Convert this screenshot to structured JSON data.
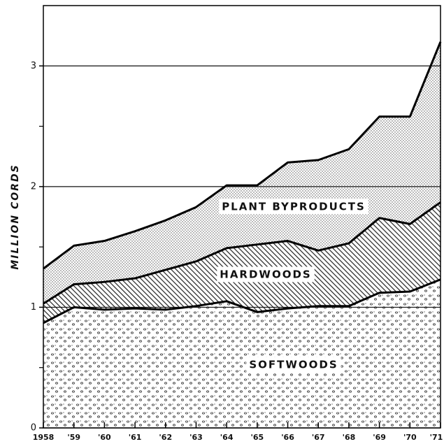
{
  "chart_data": {
    "type": "stacked_area",
    "y_label": "MILLION CORDS",
    "categories": [
      "1958",
      "'59",
      "'60",
      "'61",
      "'62",
      "'63",
      "'64",
      "'65",
      "'66",
      "'67",
      "'68",
      "'69",
      "'70",
      "'71"
    ],
    "series": [
      {
        "name": "SOFTWOODS",
        "color": "#333333",
        "pattern": "circles",
        "values": [
          0.87,
          1.0,
          0.98,
          0.99,
          0.98,
          1.01,
          1.05,
          0.96,
          0.99,
          1.01,
          1.01,
          1.12,
          1.13,
          1.23
        ]
      },
      {
        "name": "HARDWOODS",
        "color": "#222222",
        "pattern": "hatch",
        "values": [
          0.16,
          0.19,
          0.23,
          0.25,
          0.33,
          0.37,
          0.44,
          0.56,
          0.56,
          0.46,
          0.52,
          0.62,
          0.56,
          0.64
        ]
      },
      {
        "name": "PLANT BYPRODUCTS",
        "color": "#555555",
        "pattern": "dots",
        "values": [
          0.29,
          0.32,
          0.34,
          0.39,
          0.41,
          0.45,
          0.52,
          0.49,
          0.65,
          0.75,
          0.78,
          0.84,
          0.89,
          1.33
        ]
      }
    ],
    "ylim": [
      0,
      3.5
    ],
    "yticks": [
      0,
      1,
      2,
      3
    ],
    "yminor_ticks": [
      0.5,
      1.5,
      2.5
    ],
    "grid": true
  }
}
